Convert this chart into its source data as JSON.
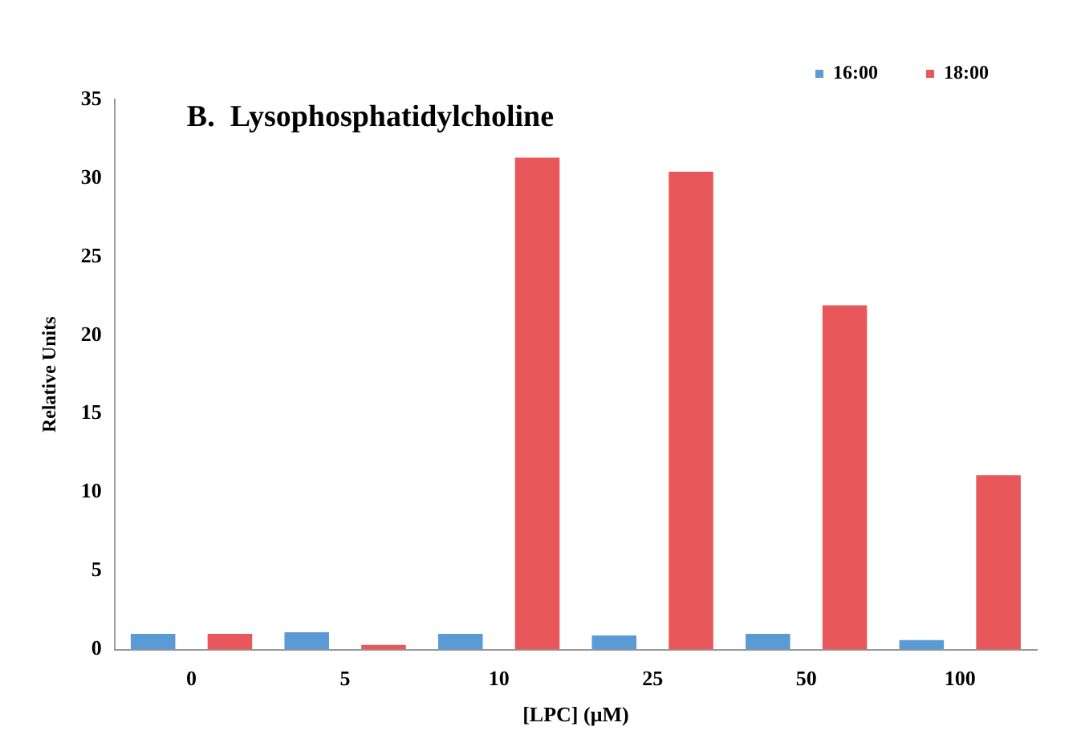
{
  "chart_data": {
    "type": "bar",
    "title": "B.  Lysophosphatidylcholine",
    "xlabel": "[LPC] (μM)",
    "ylabel": "Relative Units",
    "categories": [
      "0",
      "5",
      "10",
      "25",
      "50",
      "100"
    ],
    "series": [
      {
        "name": "16:00",
        "color": "#5b9bd5",
        "values": [
          1.0,
          1.1,
          1.0,
          0.9,
          1.0,
          0.6
        ]
      },
      {
        "name": "18:00",
        "color": "#e8585a",
        "values": [
          1.0,
          0.3,
          31.3,
          30.4,
          21.9,
          11.1
        ]
      }
    ],
    "ylim": [
      0,
      35
    ],
    "yticks": [
      0,
      5,
      10,
      15,
      20,
      25,
      30,
      35
    ],
    "grid": false,
    "legend": "top right"
  }
}
